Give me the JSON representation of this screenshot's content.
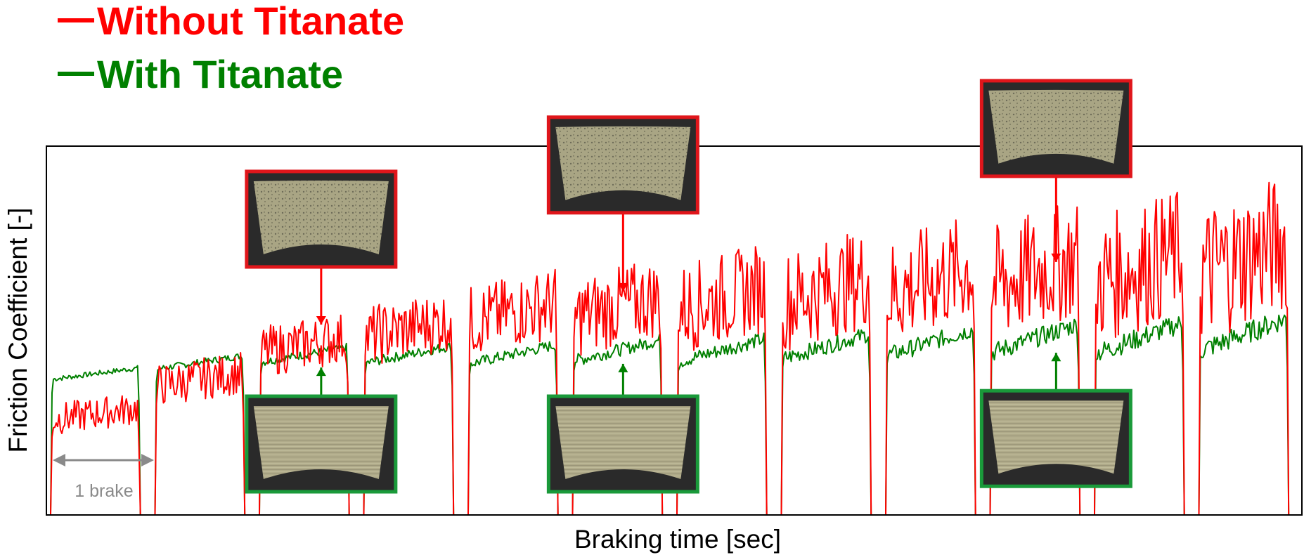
{
  "legend": {
    "without": {
      "label": "Without Titanate",
      "color": "#ff0000"
    },
    "with": {
      "label": "With Titanate",
      "color": "#008000"
    }
  },
  "chart_data": {
    "type": "line",
    "xlabel": "Braking time [sec]",
    "ylabel": "Friction Coefficient [-]",
    "ylim": [
      0,
      1
    ],
    "grid": false,
    "legend_position": "top-left",
    "annotation": "1 brake",
    "series": [
      {
        "name": "Without Titanate",
        "color": "#ff0000",
        "brake_levels": [
          0.26,
          0.35,
          0.44,
          0.48,
          0.52,
          0.53,
          0.55,
          0.57,
          0.59,
          0.61,
          0.62,
          0.64
        ]
      },
      {
        "name": "With Titanate",
        "color": "#008000",
        "brake_levels": [
          0.38,
          0.41,
          0.43,
          0.43,
          0.43,
          0.44,
          0.44,
          0.45,
          0.46,
          0.47,
          0.47,
          0.48
        ]
      }
    ],
    "photo_insets": [
      {
        "brake": 3,
        "series": "Without Titanate",
        "position": "above"
      },
      {
        "brake": 3,
        "series": "With Titanate",
        "position": "below"
      },
      {
        "brake": 6,
        "series": "Without Titanate",
        "position": "above"
      },
      {
        "brake": 6,
        "series": "With Titanate",
        "position": "below"
      },
      {
        "brake": 10,
        "series": "Without Titanate",
        "position": "above"
      },
      {
        "brake": 10,
        "series": "With Titanate",
        "position": "below"
      }
    ]
  }
}
